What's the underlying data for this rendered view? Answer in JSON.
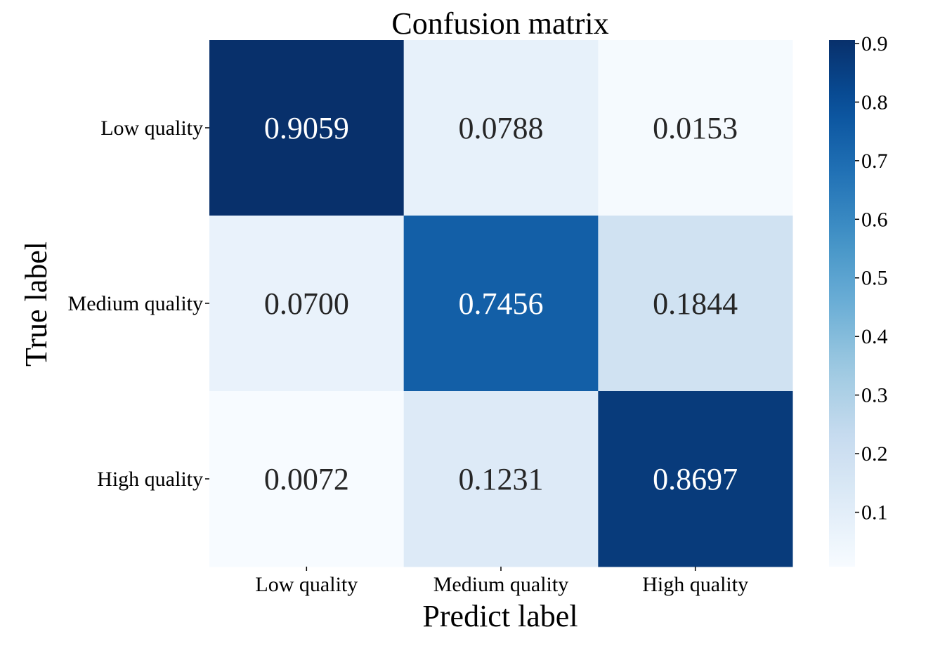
{
  "chart_data": {
    "type": "heatmap",
    "title": "Confusion matrix",
    "xlabel": "Predict label",
    "ylabel": "True label",
    "x_categories": [
      "Low quality",
      "Medium quality",
      "High quality"
    ],
    "y_categories": [
      "Low quality",
      "Medium quality",
      "High quality"
    ],
    "values": [
      [
        0.9059,
        0.0788,
        0.0153
      ],
      [
        0.07,
        0.7456,
        0.1844
      ],
      [
        0.0072,
        0.1231,
        0.8697
      ]
    ],
    "value_labels": [
      [
        "0.9059",
        "0.0788",
        "0.0153"
      ],
      [
        "0.0700",
        "0.7456",
        "0.1844"
      ],
      [
        "0.0072",
        "0.1231",
        "0.8697"
      ]
    ],
    "colormap": "Blues",
    "color_range": [
      0.0072,
      0.9059
    ],
    "colorbar_ticks": [
      0.1,
      0.2,
      0.3,
      0.4,
      0.5,
      0.6,
      0.7,
      0.8,
      0.9
    ],
    "colorbar_tick_labels": [
      "0.1",
      "0.2",
      "0.3",
      "0.4",
      "0.5",
      "0.6",
      "0.7",
      "0.8",
      "0.9"
    ],
    "grid": false,
    "legend": "colorbar-right"
  }
}
